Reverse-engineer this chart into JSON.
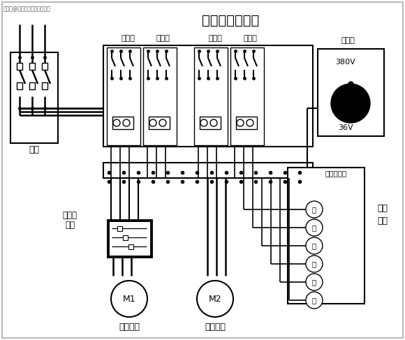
{
  "title": "电动葫芦接线图",
  "watermark": "搜狐号@北京猎鹰国际重工机械",
  "bg_color": "#ffffff",
  "line_color": "#000000",
  "knife_switch": "闸刀",
  "limit_switch_line1": "断火限",
  "limit_switch_line2": "位器",
  "terminal_block": "接线端子排",
  "transformer": "变压器",
  "contactor": "接触器",
  "m1": "M1",
  "m2": "M2",
  "motor1": "升降电机",
  "motor2": "行走电机",
  "handle_line1": "操作",
  "handle_line2": "手柄",
  "v380": "380V",
  "v36": "36V",
  "btn_green": "绿",
  "btn_red": "红",
  "btn_up": "上",
  "btn_down": "下",
  "btn_left": "左",
  "btn_right": "右"
}
